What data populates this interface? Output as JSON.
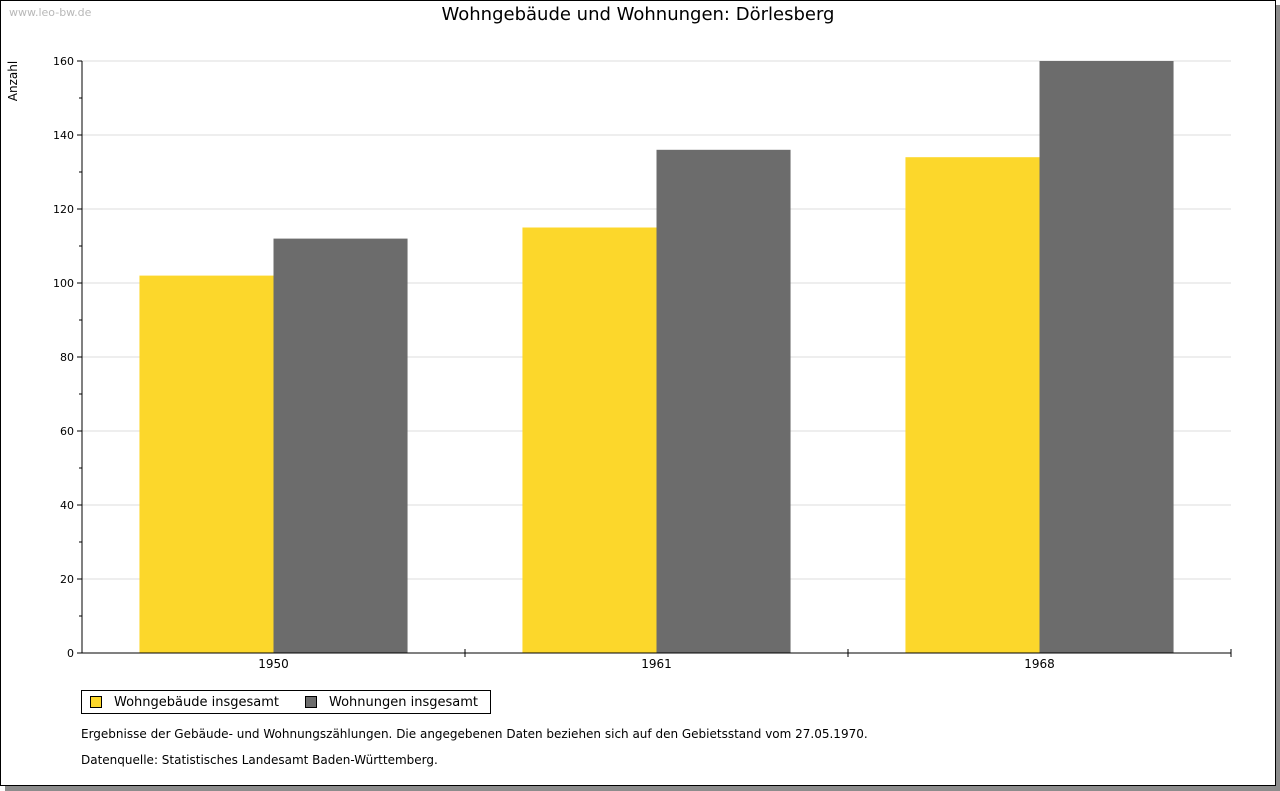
{
  "watermark": "www.leo-bw.de",
  "chart_data": {
    "type": "bar",
    "title": "Wohngebäude und Wohnungen: Dörlesberg",
    "ylabel": "Anzahl",
    "xlabel": "",
    "categories": [
      "1950",
      "1961",
      "1968"
    ],
    "series": [
      {
        "name": "Wohngebäude insgesamt",
        "color": "#fcd72b",
        "values": [
          102,
          115,
          134
        ]
      },
      {
        "name": "Wohnungen insgesamt",
        "color": "#6c6c6c",
        "values": [
          112,
          136,
          160
        ]
      }
    ],
    "ylim": [
      0,
      160
    ],
    "yticks": [
      0,
      20,
      40,
      60,
      80,
      100,
      120,
      140,
      160
    ],
    "grid": true,
    "legend": "bottom-left"
  },
  "footer": {
    "note": "Ergebnisse der Gebäude- und Wohnungszählungen. Die angegebenen Daten beziehen sich auf den Gebietsstand vom 27.05.1970.",
    "source": "Datenquelle: Statistisches Landesamt Baden-Württemberg."
  }
}
